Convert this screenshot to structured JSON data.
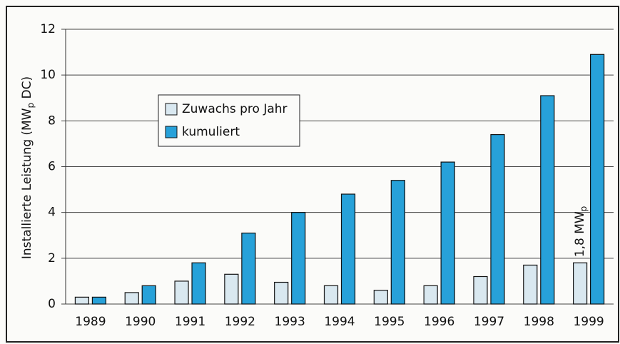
{
  "chart_data": {
    "type": "bar",
    "ylabel": [
      "Installierte Leistung (MW",
      "p",
      " DC)"
    ],
    "categories": [
      "1989",
      "1990",
      "1991",
      "1992",
      "1993",
      "1994",
      "1995",
      "1996",
      "1997",
      "1998",
      "1999"
    ],
    "series": [
      {
        "name": "Zuwachs pro Jahr",
        "color": "#d9e8f0",
        "values": [
          0.3,
          0.5,
          1.0,
          1.3,
          0.95,
          0.8,
          0.6,
          0.8,
          1.2,
          1.7,
          1.8
        ]
      },
      {
        "name": "kumuliert",
        "color": "#27a1d9",
        "values": [
          0.3,
          0.8,
          1.8,
          3.1,
          4.0,
          4.8,
          5.4,
          6.2,
          7.4,
          9.1,
          10.9
        ]
      }
    ],
    "annotation": [
      "1,8 MW",
      "p"
    ],
    "ylim": [
      0,
      12
    ],
    "yticks": [
      0,
      2,
      4,
      6,
      8,
      10,
      12
    ],
    "grid": true
  }
}
